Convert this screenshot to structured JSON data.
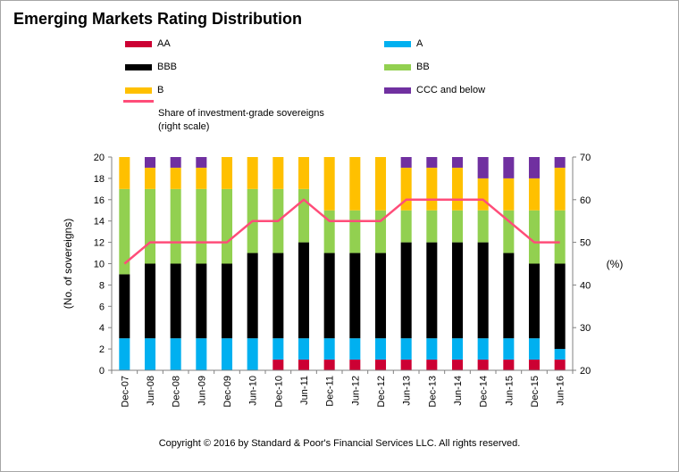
{
  "title": "Emerging Markets Rating Distribution",
  "copyright": "Copyright © 2016 by Standard & Poor's Financial Services LLC. All rights reserved.",
  "colors": {
    "AA": "#cc0033",
    "A": "#00b0f0",
    "BBB": "#000000",
    "BB": "#92d050",
    "B": "#ffc000",
    "CCC and below": "#7030a0",
    "line": "#ff4d79"
  },
  "legend": [
    {
      "label": "AA",
      "key": "AA"
    },
    {
      "label": "A",
      "key": "A"
    },
    {
      "label": "BBB",
      "key": "BBB"
    },
    {
      "label": "BB",
      "key": "BB"
    },
    {
      "label": "B",
      "key": "B"
    },
    {
      "label": "CCC and below",
      "key": "CCC and below"
    },
    {
      "label": "Share of investment-grade sovereigns",
      "label2": "(right scale)",
      "key": "line"
    }
  ],
  "chart_data": {
    "type": "bar",
    "stacked": true,
    "categories": [
      "Dec-07",
      "Jun-08",
      "Dec-08",
      "Jun-09",
      "Dec-09",
      "Jun-10",
      "Dec-10",
      "Jun-11",
      "Dec-11",
      "Jun-12",
      "Dec-12",
      "Jun-13",
      "Dec-13",
      "Jun-14",
      "Dec-14",
      "Jun-15",
      "Dec-15",
      "Jun-16"
    ],
    "series": [
      {
        "name": "AA",
        "values": [
          0,
          0,
          0,
          0,
          0,
          0,
          1,
          1,
          1,
          1,
          1,
          1,
          1,
          1,
          1,
          1,
          1,
          1
        ]
      },
      {
        "name": "A",
        "values": [
          3,
          3,
          3,
          3,
          3,
          3,
          2,
          2,
          2,
          2,
          2,
          2,
          2,
          2,
          2,
          2,
          2,
          1
        ]
      },
      {
        "name": "BBB",
        "values": [
          6,
          7,
          7,
          7,
          7,
          8,
          8,
          9,
          8,
          8,
          8,
          9,
          9,
          9,
          9,
          8,
          7,
          8
        ]
      },
      {
        "name": "BB",
        "values": [
          8,
          7,
          7,
          7,
          7,
          6,
          6,
          5,
          4,
          4,
          4,
          3,
          3,
          3,
          3,
          4,
          5,
          5
        ]
      },
      {
        "name": "B",
        "values": [
          3,
          2,
          2,
          2,
          3,
          3,
          3,
          3,
          5,
          5,
          5,
          4,
          4,
          4,
          3,
          3,
          3,
          4
        ]
      },
      {
        "name": "CCC and below",
        "values": [
          0,
          1,
          1,
          1,
          0,
          0,
          0,
          0,
          0,
          0,
          0,
          1,
          1,
          1,
          2,
          2,
          2,
          1
        ]
      }
    ],
    "line": {
      "name": "Share of investment-grade sovereigns",
      "axis": "right",
      "values": [
        45,
        50,
        50,
        50,
        50,
        55,
        55,
        60,
        55,
        55,
        55,
        60,
        60,
        60,
        60,
        55,
        50,
        50
      ]
    },
    "ylabel": "(No. of sovereigns)",
    "ylim": [
      0,
      20
    ],
    "yticks": [
      0,
      2,
      4,
      6,
      8,
      10,
      12,
      14,
      16,
      18,
      20
    ],
    "y2label": "(%)",
    "y2lim": [
      20,
      70
    ],
    "y2ticks": [
      20,
      30,
      40,
      50,
      60,
      70
    ],
    "legend_position": "top"
  }
}
